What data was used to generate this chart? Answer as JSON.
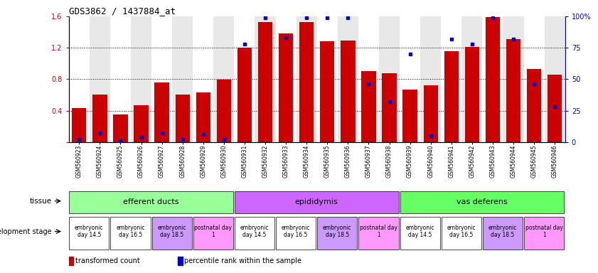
{
  "title": "GDS3862 / 1437884_at",
  "samples": [
    "GSM560923",
    "GSM560924",
    "GSM560925",
    "GSM560926",
    "GSM560927",
    "GSM560928",
    "GSM560929",
    "GSM560930",
    "GSM560931",
    "GSM560932",
    "GSM560933",
    "GSM560934",
    "GSM560935",
    "GSM560936",
    "GSM560937",
    "GSM560938",
    "GSM560939",
    "GSM560940",
    "GSM560941",
    "GSM560942",
    "GSM560943",
    "GSM560944",
    "GSM560945",
    "GSM560946"
  ],
  "red_values": [
    0.43,
    0.6,
    0.35,
    0.47,
    0.76,
    0.6,
    0.63,
    0.79,
    1.2,
    1.53,
    1.38,
    1.53,
    1.28,
    1.29,
    0.9,
    0.88,
    0.67,
    0.72,
    1.16,
    1.21,
    1.59,
    1.31,
    0.93,
    0.86
  ],
  "blue_values": [
    2,
    7,
    1,
    4,
    7,
    2,
    6,
    2,
    78,
    99,
    83,
    99,
    99,
    99,
    46,
    32,
    70,
    5,
    82,
    78,
    99,
    82,
    46,
    28
  ],
  "ylim_left": [
    0,
    1.6
  ],
  "ylim_right": [
    0,
    100
  ],
  "yticks_left": [
    0.0,
    0.4,
    0.8,
    1.2,
    1.6
  ],
  "yticks_right": [
    0,
    25,
    50,
    75,
    100
  ],
  "ytick_labels_right": [
    "0",
    "25",
    "50",
    "75",
    "100%"
  ],
  "bar_color": "#CC0000",
  "dot_color": "#0000CC",
  "tissue_groups": [
    {
      "label": "efferent ducts",
      "start": 0,
      "end": 7,
      "color": "#99FF99"
    },
    {
      "label": "epididymis",
      "start": 8,
      "end": 15,
      "color": "#CC66FF"
    },
    {
      "label": "vas deferens",
      "start": 16,
      "end": 23,
      "color": "#66FF66"
    }
  ],
  "dev_stage_groups": [
    {
      "label": "embryonic\nday 14.5",
      "start": 0,
      "end": 1,
      "color": "#FFFFFF"
    },
    {
      "label": "embryonic\nday 16.5",
      "start": 2,
      "end": 3,
      "color": "#FFFFFF"
    },
    {
      "label": "embryonic\nday 18.5",
      "start": 4,
      "end": 5,
      "color": "#CC99FF"
    },
    {
      "label": "postnatal day\n1",
      "start": 6,
      "end": 7,
      "color": "#FF99FF"
    },
    {
      "label": "embryonic\nday 14.5",
      "start": 8,
      "end": 9,
      "color": "#FFFFFF"
    },
    {
      "label": "embryonic\nday 16.5",
      "start": 10,
      "end": 11,
      "color": "#FFFFFF"
    },
    {
      "label": "embryonic\nday 18.5",
      "start": 12,
      "end": 13,
      "color": "#CC99FF"
    },
    {
      "label": "postnatal day\n1",
      "start": 14,
      "end": 15,
      "color": "#FF99FF"
    },
    {
      "label": "embryonic\nday 14.5",
      "start": 16,
      "end": 17,
      "color": "#FFFFFF"
    },
    {
      "label": "embryonic\nday 16.5",
      "start": 18,
      "end": 19,
      "color": "#FFFFFF"
    },
    {
      "label": "embryonic\nday 18.5",
      "start": 20,
      "end": 21,
      "color": "#CC99FF"
    },
    {
      "label": "postnatal day\n1",
      "start": 22,
      "end": 23,
      "color": "#FF99FF"
    }
  ],
  "legend_red": "transformed count",
  "legend_blue": "percentile rank within the sample",
  "label_tissue": "tissue",
  "label_devstage": "development stage",
  "bg_color": "#FFFFFF",
  "col_bg_odd": "#E8E8E8",
  "title_fontsize": 9,
  "bar_width": 0.7
}
